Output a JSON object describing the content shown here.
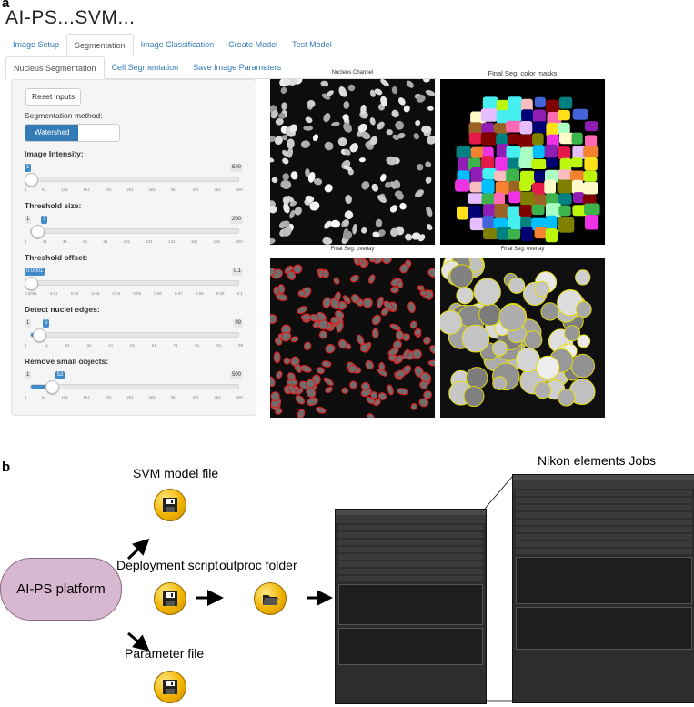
{
  "panel_a": {
    "letter": "a",
    "app_title": "AI-PS...SVM...",
    "main_tabs": [
      "Image Setup",
      "Segmentation",
      "Image Classification",
      "Create Model",
      "Test Model"
    ],
    "sub_tabs": [
      "Nucleus Segmentation",
      "Cell Segmentation",
      "Save Image Parameters"
    ],
    "reset_button": "Reset inputs",
    "method_label": "Segmentation method:",
    "method_selected": "Watershed",
    "sliders": [
      {
        "label": "Image Intensity:",
        "value": "1",
        "min": "1",
        "max": "500",
        "value_fraction": 0.0,
        "ticks": [
          "1",
          "51",
          "101",
          "151",
          "201",
          "251",
          "301",
          "351",
          "401",
          "451",
          "500"
        ]
      },
      {
        "label": "Threshold size:",
        "value": "1",
        "value2": "7",
        "min": "1",
        "max": "200",
        "value_fraction": 0.03,
        "ticks": [
          "1",
          "21",
          "41",
          "61",
          "81",
          "101",
          "121",
          "141",
          "161",
          "181",
          "200"
        ]
      },
      {
        "label": "Threshold offset:",
        "value": "0.0001",
        "min": "0.0001",
        "max": "0.1",
        "value_fraction": 0.0,
        "ticks": [
          "0.0001",
          "0.01",
          "0.02",
          "0.03",
          "0.04",
          "0.05",
          "0.06",
          "0.07",
          "0.08",
          "0.09",
          "0.1"
        ]
      },
      {
        "label": "Detect nuclei edges:",
        "value": "1",
        "value2": "5",
        "min": "1",
        "max": "99",
        "value_fraction": 0.04,
        "ticks": [
          "1",
          "11",
          "21",
          "31",
          "41",
          "51",
          "61",
          "71",
          "81",
          "91",
          "99"
        ]
      },
      {
        "label": "Remove small objects:",
        "value": "1",
        "value2": "52",
        "min": "1",
        "max": "500",
        "value_fraction": 0.1,
        "ticks": [
          "1",
          "51",
          "101",
          "151",
          "201",
          "251",
          "301",
          "351",
          "401",
          "451",
          "500"
        ]
      }
    ],
    "image_captions": {
      "nucleus": "Nucleus Channel",
      "color_masks": "Final Seg: color masks",
      "overlay1": "Final Seg: overlay",
      "overlay2": "Final Seg: overlay"
    }
  },
  "panel_b": {
    "letter": "b",
    "svm_model_file": "SVM model file",
    "platform": "AI-PS platform",
    "deployment_script": "Deployment script",
    "outproc_folder": "outproc folder",
    "parameter_file": "Parameter file",
    "nikon_title": "Nikon elements Jobs",
    "icons": [
      "save-disk-icon",
      "save-disk-icon",
      "save-disk-icon",
      "folder-icon"
    ]
  },
  "colors": {
    "accent_blue": "#337ab7",
    "platform_fill": "#d8b7d1",
    "disk_gold": "#f0b400"
  }
}
